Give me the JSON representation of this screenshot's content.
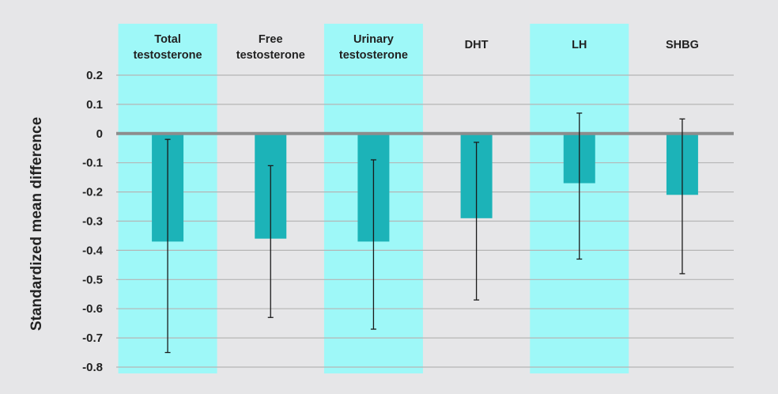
{
  "chart_data": {
    "type": "bar",
    "title": "",
    "xlabel": "",
    "ylabel": "Standardized mean difference",
    "ylim": [
      -0.8,
      0.2
    ],
    "yticks": [
      0.2,
      0.1,
      0,
      -0.1,
      -0.2,
      -0.3,
      -0.4,
      -0.5,
      -0.6,
      -0.7,
      -0.8
    ],
    "ytick_labels": [
      "0.2",
      "0.1",
      "0",
      "-0.1",
      "-0.2",
      "-0.3",
      "-0.4",
      "-0.5",
      "-0.6",
      "-0.7",
      "-0.8"
    ],
    "grid": true,
    "categories": [
      [
        "Total",
        "testosterone"
      ],
      [
        "Free",
        "testosterone"
      ],
      [
        "Urinary",
        "testosterone"
      ],
      [
        "DHT"
      ],
      [
        "LH"
      ],
      [
        "SHBG"
      ]
    ],
    "highlighted": [
      true,
      false,
      true,
      false,
      true,
      false
    ],
    "values": [
      -0.37,
      -0.36,
      -0.37,
      -0.29,
      -0.17,
      -0.21
    ],
    "error_low": [
      -0.75,
      -0.63,
      -0.67,
      -0.57,
      -0.43,
      -0.48
    ],
    "error_high": [
      -0.02,
      -0.11,
      -0.09,
      -0.03,
      0.07,
      0.05
    ],
    "colors": {
      "background": "#e6e6e8",
      "highlight_band": "#9ef8f8",
      "bar": "#1cb3b8",
      "grid": "#b5b5b5",
      "zero_line": "#8d8d8d",
      "error_bar": "#1a1a1a",
      "text": "#222222"
    }
  }
}
